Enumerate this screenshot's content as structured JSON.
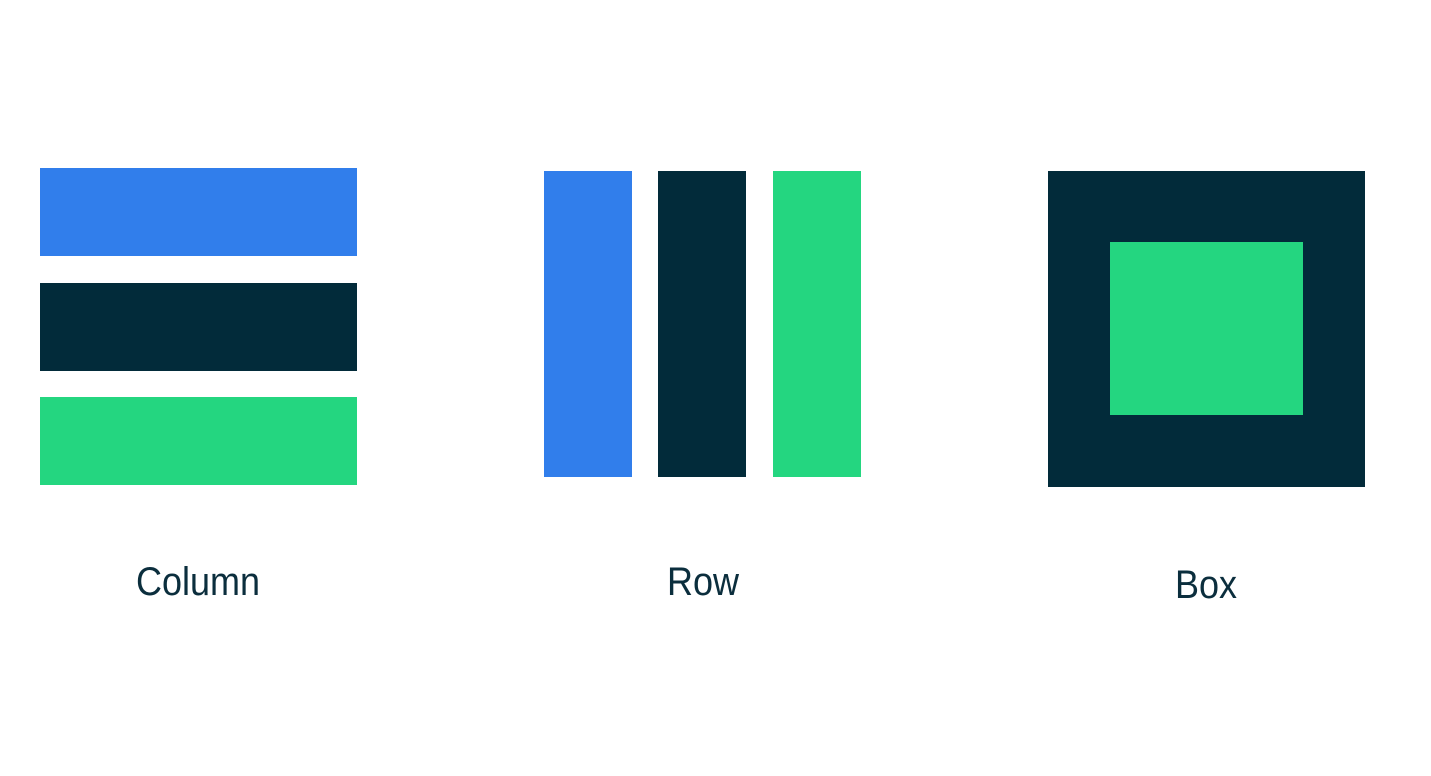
{
  "colors": {
    "blue": "#317EEB",
    "navy": "#022B3A",
    "green": "#24D680",
    "text": "#0B2E3D",
    "background": "#FFFFFF"
  },
  "layouts": [
    {
      "id": "column",
      "label": "Column",
      "blocks": [
        "blue",
        "navy",
        "green"
      ]
    },
    {
      "id": "row",
      "label": "Row",
      "blocks": [
        "blue",
        "navy",
        "green"
      ]
    },
    {
      "id": "box",
      "label": "Box",
      "blocks": [
        "navy",
        "green"
      ]
    }
  ]
}
